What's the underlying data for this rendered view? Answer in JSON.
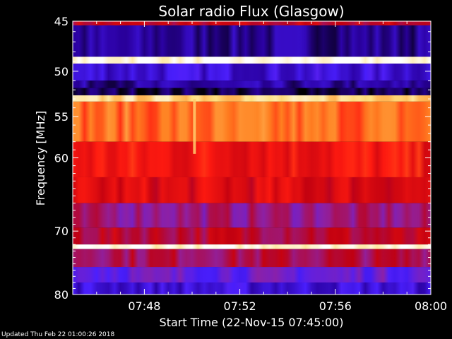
{
  "chart_data": {
    "type": "heatmap",
    "title": "Solar radio Flux (Glasgow)",
    "xlabel": "Start Time (22-Nov-15 07:45:00)",
    "ylabel": "Frequency [MHz]",
    "x_range_minutes": [
      0,
      15
    ],
    "x_ticks": [
      {
        "minutes": 3,
        "label": "07:48"
      },
      {
        "minutes": 7,
        "label": "07:52"
      },
      {
        "minutes": 11,
        "label": "07:56"
      },
      {
        "minutes": 15,
        "label": "08:00"
      }
    ],
    "y_scale": "log",
    "y_range_mhz": [
      80,
      45
    ],
    "y_ticks": [
      45,
      50,
      55,
      60,
      70,
      80
    ],
    "y_tick_labels": [
      "45",
      "50",
      "55",
      "60",
      "70",
      "80"
    ],
    "colormap": [
      "#000000",
      "#2a00a0",
      "#4a1fff",
      "#9020a0",
      "#c00010",
      "#ff1a10",
      "#ff8020",
      "#ffe080",
      "#ffffff"
    ],
    "frequency_bands": [
      {
        "from_mhz": 45.0,
        "to_mhz": 45.4,
        "level": 0.5
      },
      {
        "from_mhz": 45.4,
        "to_mhz": 48.5,
        "level": 0.12
      },
      {
        "from_mhz": 48.5,
        "to_mhz": 49.2,
        "level": 0.98
      },
      {
        "from_mhz": 49.2,
        "to_mhz": 51.0,
        "level": 0.2
      },
      {
        "from_mhz": 51.0,
        "to_mhz": 51.8,
        "level": 0.12
      },
      {
        "from_mhz": 51.8,
        "to_mhz": 52.6,
        "level": 0.06
      },
      {
        "from_mhz": 52.6,
        "to_mhz": 53.3,
        "level": 0.88
      },
      {
        "from_mhz": 53.3,
        "to_mhz": 58.0,
        "level": 0.72
      },
      {
        "from_mhz": 58.0,
        "to_mhz": 62.5,
        "level": 0.6
      },
      {
        "from_mhz": 62.5,
        "to_mhz": 66.0,
        "level": 0.55
      },
      {
        "from_mhz": 66.0,
        "to_mhz": 69.5,
        "level": 0.4
      },
      {
        "from_mhz": 69.5,
        "to_mhz": 72.0,
        "level": 0.48
      },
      {
        "from_mhz": 72.0,
        "to_mhz": 72.7,
        "level": 0.97
      },
      {
        "from_mhz": 72.7,
        "to_mhz": 75.5,
        "level": 0.45
      },
      {
        "from_mhz": 75.5,
        "to_mhz": 78.0,
        "level": 0.3
      },
      {
        "from_mhz": 78.0,
        "to_mhz": 80.0,
        "level": 0.2
      }
    ],
    "features": [
      {
        "kind": "burst",
        "minutes": 5.1,
        "from_mhz": 53.0,
        "to_mhz": 59.5,
        "level": 0.85
      }
    ]
  },
  "footer": {
    "updated_text": "Updated Thu Feb 22 01:00:26 2018"
  }
}
